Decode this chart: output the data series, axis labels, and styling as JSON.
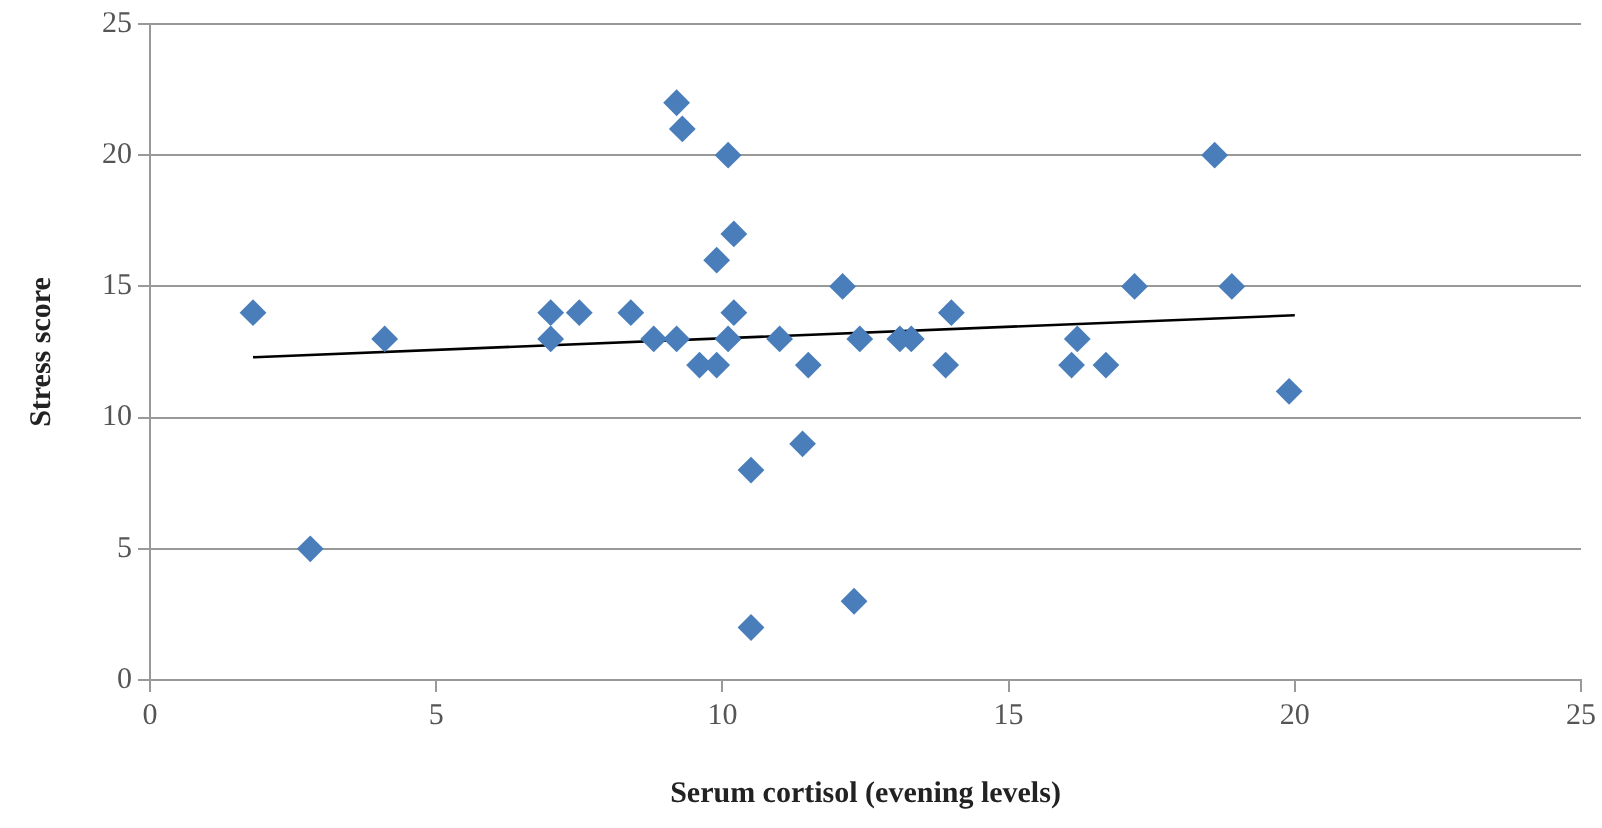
{
  "chart_data": {
    "type": "scatter",
    "xlabel": "Serum cortisol (evening levels)",
    "ylabel": "Stress score",
    "xlim": [
      0,
      25
    ],
    "xticks": [
      0,
      5,
      10,
      15,
      20,
      25
    ],
    "ylim": [
      0,
      25
    ],
    "yticks": [
      0,
      5,
      10,
      15,
      20,
      25
    ],
    "grid": "y",
    "legend": false,
    "marker": "diamond",
    "series": [
      {
        "type": "scatter",
        "color": "#4a7ebb",
        "x": [
          1.8,
          2.8,
          4.1,
          7.0,
          7.0,
          7.5,
          8.4,
          8.8,
          9.2,
          9.2,
          9.3,
          9.6,
          9.9,
          9.9,
          10.1,
          10.1,
          10.2,
          10.2,
          10.5,
          10.5,
          11.0,
          11.5,
          11.4,
          12.1,
          12.3,
          12.4,
          13.1,
          13.3,
          13.9,
          14.0,
          16.1,
          16.2,
          16.7,
          17.2,
          18.6,
          18.9,
          19.9
        ],
        "values": [
          14,
          5,
          13,
          13,
          14,
          14,
          14,
          13,
          13,
          22,
          21,
          12,
          12,
          16,
          13,
          20,
          17,
          14,
          8,
          2,
          13,
          12,
          9,
          15,
          3,
          13,
          13,
          13,
          12,
          14,
          12,
          13,
          12,
          15,
          20,
          15,
          11
        ]
      },
      {
        "type": "line",
        "color": "#000000",
        "marker": "none",
        "x": [
          1.8,
          20
        ],
        "values": [
          12.3,
          13.9
        ]
      }
    ]
  }
}
